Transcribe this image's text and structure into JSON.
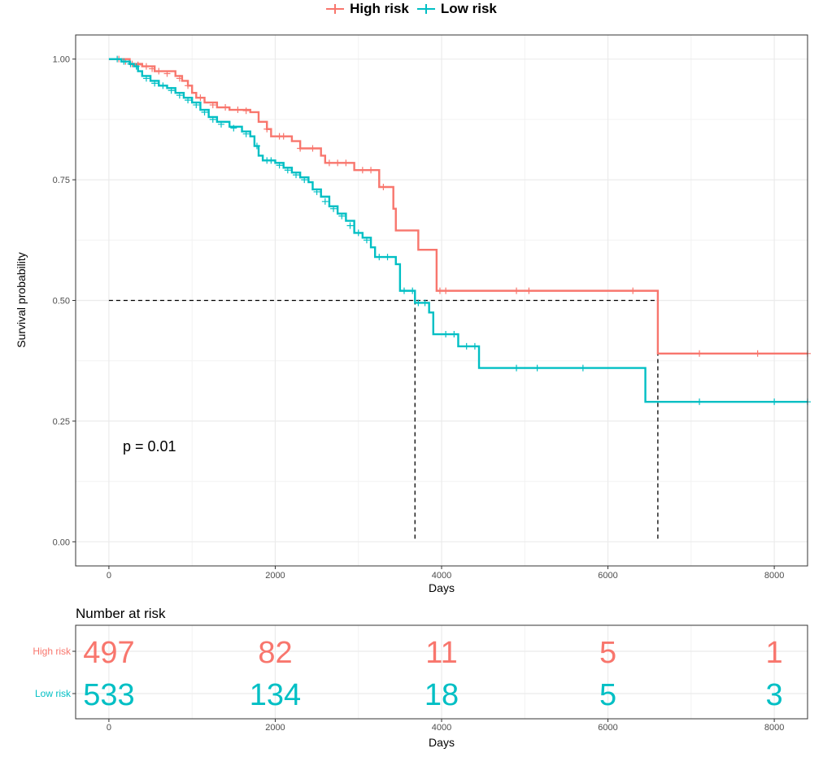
{
  "chart_data": [
    {
      "type": "line",
      "subtype": "kaplan-meier",
      "ylabel": "Survival probability",
      "xlabel": "Days",
      "xlim": [
        -400,
        8400
      ],
      "ylim": [
        -0.05,
        1.05
      ],
      "xticks": [
        0,
        2000,
        4000,
        6000,
        8000
      ],
      "yticks": [
        0.0,
        0.25,
        0.5,
        0.75,
        1.0
      ],
      "ytick_labels": [
        "0.00",
        "0.25",
        "0.50",
        "0.75",
        "1.00"
      ],
      "grid": true,
      "legend_position": "top",
      "annotation": "p = 0.01",
      "median_survival": [
        {
          "name": "Low risk",
          "x": 3680,
          "y": 0.5
        },
        {
          "name": "High risk",
          "x": 6600,
          "y": 0.5
        }
      ],
      "series": [
        {
          "name": "High risk",
          "color": "#F8766D",
          "steps": [
            [
              0,
              1.0
            ],
            [
              250,
              0.99
            ],
            [
              400,
              0.985
            ],
            [
              550,
              0.975
            ],
            [
              800,
              0.965
            ],
            [
              880,
              0.955
            ],
            [
              950,
              0.945
            ],
            [
              1000,
              0.93
            ],
            [
              1050,
              0.92
            ],
            [
              1150,
              0.91
            ],
            [
              1300,
              0.9
            ],
            [
              1450,
              0.895
            ],
            [
              1700,
              0.89
            ],
            [
              1800,
              0.87
            ],
            [
              1900,
              0.855
            ],
            [
              1950,
              0.84
            ],
            [
              2200,
              0.83
            ],
            [
              2300,
              0.815
            ],
            [
              2550,
              0.8
            ],
            [
              2600,
              0.785
            ],
            [
              2950,
              0.77
            ],
            [
              3250,
              0.735
            ],
            [
              3420,
              0.69
            ],
            [
              3450,
              0.645
            ],
            [
              3720,
              0.605
            ],
            [
              3940,
              0.52
            ],
            [
              6600,
              0.39
            ],
            [
              8400,
              0.39
            ]
          ],
          "censors": [
            [
              120,
              1.0
            ],
            [
              200,
              0.995
            ],
            [
              280,
              0.99
            ],
            [
              350,
              0.988
            ],
            [
              450,
              0.985
            ],
            [
              520,
              0.98
            ],
            [
              600,
              0.975
            ],
            [
              700,
              0.97
            ],
            [
              850,
              0.96
            ],
            [
              950,
              0.945
            ],
            [
              1100,
              0.92
            ],
            [
              1250,
              0.905
            ],
            [
              1400,
              0.9
            ],
            [
              1550,
              0.895
            ],
            [
              1650,
              0.893
            ],
            [
              1900,
              0.855
            ],
            [
              2050,
              0.84
            ],
            [
              2100,
              0.84
            ],
            [
              2300,
              0.815
            ],
            [
              2450,
              0.815
            ],
            [
              2650,
              0.785
            ],
            [
              2750,
              0.785
            ],
            [
              2850,
              0.785
            ],
            [
              3050,
              0.77
            ],
            [
              3150,
              0.77
            ],
            [
              3300,
              0.735
            ],
            [
              3980,
              0.52
            ],
            [
              4050,
              0.52
            ],
            [
              4900,
              0.52
            ],
            [
              5050,
              0.52
            ],
            [
              6300,
              0.52
            ],
            [
              7100,
              0.39
            ],
            [
              7800,
              0.39
            ],
            [
              8400,
              0.39
            ]
          ]
        },
        {
          "name": "Low risk",
          "color": "#00BFC4",
          "steps": [
            [
              0,
              1.0
            ],
            [
              150,
              0.995
            ],
            [
              250,
              0.99
            ],
            [
              300,
              0.985
            ],
            [
              350,
              0.975
            ],
            [
              400,
              0.965
            ],
            [
              500,
              0.955
            ],
            [
              600,
              0.945
            ],
            [
              700,
              0.94
            ],
            [
              800,
              0.93
            ],
            [
              900,
              0.92
            ],
            [
              1000,
              0.91
            ],
            [
              1100,
              0.895
            ],
            [
              1200,
              0.88
            ],
            [
              1300,
              0.87
            ],
            [
              1450,
              0.86
            ],
            [
              1600,
              0.85
            ],
            [
              1700,
              0.84
            ],
            [
              1750,
              0.82
            ],
            [
              1800,
              0.8
            ],
            [
              1850,
              0.79
            ],
            [
              2000,
              0.785
            ],
            [
              2100,
              0.775
            ],
            [
              2200,
              0.765
            ],
            [
              2300,
              0.755
            ],
            [
              2400,
              0.745
            ],
            [
              2450,
              0.73
            ],
            [
              2550,
              0.715
            ],
            [
              2650,
              0.695
            ],
            [
              2750,
              0.68
            ],
            [
              2850,
              0.665
            ],
            [
              2950,
              0.64
            ],
            [
              3050,
              0.63
            ],
            [
              3150,
              0.61
            ],
            [
              3200,
              0.59
            ],
            [
              3450,
              0.575
            ],
            [
              3500,
              0.52
            ],
            [
              3680,
              0.495
            ],
            [
              3850,
              0.475
            ],
            [
              3900,
              0.43
            ],
            [
              4200,
              0.405
            ],
            [
              4450,
              0.36
            ],
            [
              6450,
              0.29
            ],
            [
              8400,
              0.29
            ]
          ],
          "censors": [
            [
              100,
              1.0
            ],
            [
              180,
              0.995
            ],
            [
              260,
              0.99
            ],
            [
              330,
              0.985
            ],
            [
              450,
              0.96
            ],
            [
              550,
              0.95
            ],
            [
              650,
              0.945
            ],
            [
              750,
              0.935
            ],
            [
              850,
              0.925
            ],
            [
              950,
              0.915
            ],
            [
              1050,
              0.905
            ],
            [
              1150,
              0.89
            ],
            [
              1250,
              0.875
            ],
            [
              1350,
              0.865
            ],
            [
              1500,
              0.857
            ],
            [
              1650,
              0.845
            ],
            [
              1780,
              0.82
            ],
            [
              1900,
              0.79
            ],
            [
              1950,
              0.79
            ],
            [
              2050,
              0.78
            ],
            [
              2150,
              0.77
            ],
            [
              2250,
              0.76
            ],
            [
              2350,
              0.75
            ],
            [
              2500,
              0.725
            ],
            [
              2600,
              0.705
            ],
            [
              2700,
              0.69
            ],
            [
              2800,
              0.675
            ],
            [
              2900,
              0.655
            ],
            [
              3000,
              0.64
            ],
            [
              3100,
              0.625
            ],
            [
              3250,
              0.59
            ],
            [
              3350,
              0.59
            ],
            [
              3550,
              0.52
            ],
            [
              3650,
              0.52
            ],
            [
              3720,
              0.495
            ],
            [
              3800,
              0.495
            ],
            [
              4050,
              0.43
            ],
            [
              4150,
              0.43
            ],
            [
              4300,
              0.405
            ],
            [
              4400,
              0.405
            ],
            [
              4900,
              0.36
            ],
            [
              5150,
              0.36
            ],
            [
              5700,
              0.36
            ],
            [
              7100,
              0.29
            ],
            [
              8000,
              0.29
            ],
            [
              8400,
              0.29
            ]
          ]
        }
      ]
    },
    {
      "type": "table",
      "title": "Number at risk",
      "xlabel": "Days",
      "xlim": [
        -400,
        8400
      ],
      "xticks": [
        0,
        2000,
        4000,
        6000,
        8000
      ],
      "grid": true,
      "rows": [
        {
          "name": "High risk",
          "color": "#F8766D",
          "values": [
            "497",
            "82",
            "11",
            "5",
            "1"
          ]
        },
        {
          "name": "Low risk",
          "color": "#00BFC4",
          "values": [
            "533",
            "134",
            "18",
            "5",
            "3"
          ]
        }
      ]
    }
  ]
}
